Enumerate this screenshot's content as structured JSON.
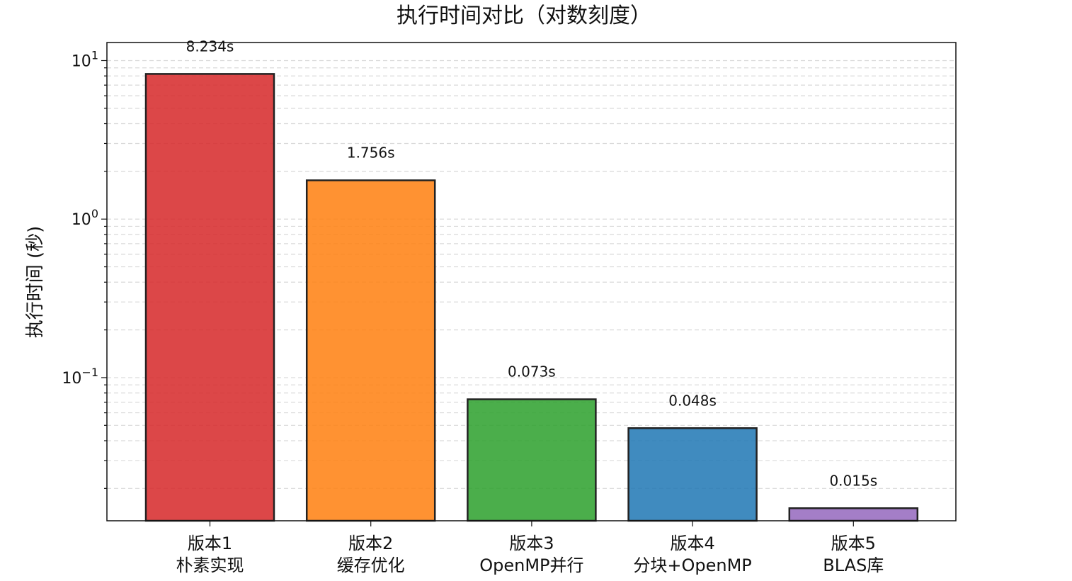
{
  "chart_data": {
    "type": "bar",
    "title": "执行时间对比（对数刻度）",
    "ylabel": "执行时间 (秒)",
    "xlabel": "",
    "yscale": "log",
    "ylim": [
      0.0125,
      13
    ],
    "grid": "y-dashed",
    "y_tick_labels": [
      {
        "value": 10,
        "base": "10",
        "exp": "1"
      },
      {
        "value": 1,
        "base": "10",
        "exp": "0"
      },
      {
        "value": 0.1,
        "base": "10",
        "exp": "−1"
      }
    ],
    "categories": [
      {
        "line1": "版本1",
        "line2": "朴素实现"
      },
      {
        "line1": "版本2",
        "line2": "缓存优化"
      },
      {
        "line1": "版本3",
        "line2": "OpenMP并行"
      },
      {
        "line1": "版本4",
        "line2": "分块+OpenMP"
      },
      {
        "line1": "版本5",
        "line2": "BLAS库"
      }
    ],
    "values": [
      8.234,
      1.756,
      0.073,
      0.048,
      0.015
    ],
    "data_labels": [
      "8.234s",
      "1.756s",
      "0.073s",
      "0.048s",
      "0.015s"
    ],
    "colors": [
      "#d62728",
      "#ff7f0e",
      "#2ca02c",
      "#1f77b4",
      "#9467bd"
    ]
  }
}
